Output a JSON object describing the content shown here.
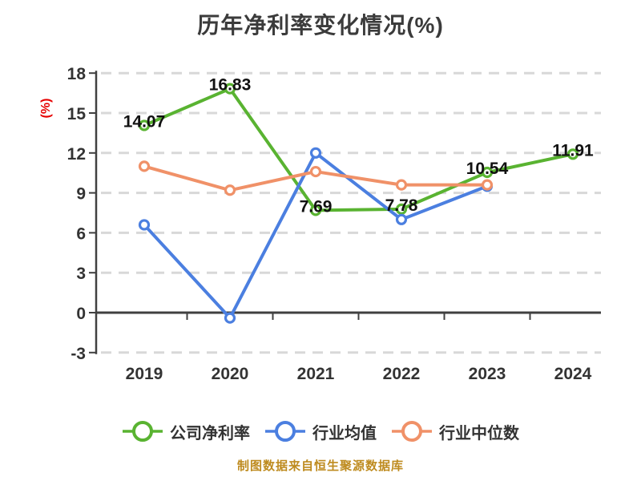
{
  "title": "历年净利率变化情况(%)",
  "footer": "制图数据来自恒生聚源数据库",
  "colors": {
    "background": "#ffffff",
    "grid": "#d8d8d8",
    "axis": "#404040",
    "tick_text": "#333333",
    "data_label_text": "#111111",
    "ylabel": "#e60000",
    "title_text": "#3b3b3b",
    "footer": "#be8b1f",
    "marker_fill": "#ffffff"
  },
  "chart_data": {
    "type": "line",
    "title": "历年净利率变化情况(%)",
    "xlabel": "",
    "ylabel": "(%)",
    "categories": [
      "2019",
      "2020",
      "2021",
      "2022",
      "2023",
      "2024"
    ],
    "y_ticks": [
      18,
      15,
      12,
      9,
      6,
      3,
      0,
      -3
    ],
    "ylim": [
      -3,
      18
    ],
    "grid": "horizontal-dashed",
    "legend_position": "bottom",
    "series": [
      {
        "name": "公司净利率",
        "color": "#59b331",
        "z": 1,
        "values": [
          14.07,
          16.83,
          7.69,
          7.78,
          10.54,
          11.91
        ],
        "point_labels": [
          "14.07",
          "16.83",
          "7.69",
          "7.78",
          "10.54",
          "11.91"
        ]
      },
      {
        "name": "行业均值",
        "color": "#4b7fe0",
        "z": 2,
        "values": [
          6.6,
          -0.4,
          12,
          7,
          9.5,
          null
        ],
        "point_labels": null
      },
      {
        "name": "行业中位数",
        "color": "#f09168",
        "z": 3,
        "values": [
          11,
          9.2,
          10.6,
          9.6,
          9.6,
          null
        ],
        "point_labels": null
      }
    ]
  }
}
